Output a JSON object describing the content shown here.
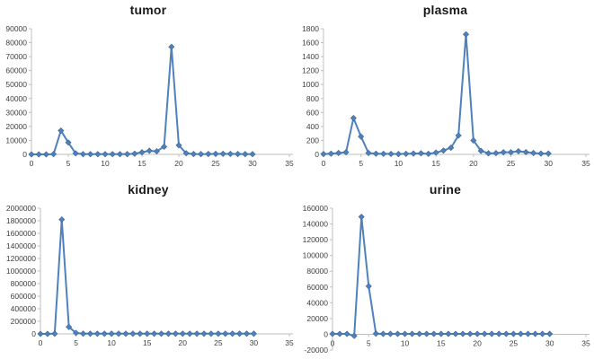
{
  "page": {
    "background": "#ffffff"
  },
  "colors": {
    "series_line": "#4F81BD",
    "marker_fill": "#4F81BD",
    "marker_border": "#3A6494",
    "axis_line": "#BFBFBF",
    "tick_label": "#404040",
    "title": "#1a1a1a"
  },
  "chart_data": [
    {
      "id": "tumor",
      "type": "line",
      "title": "tumor",
      "marker": "diamond",
      "grid": false,
      "legend": "none",
      "xlim": [
        0,
        35
      ],
      "x_tick_step": 5,
      "ylim": [
        0,
        90000
      ],
      "y_tick_step": 10000,
      "x": [
        0,
        1,
        2,
        3,
        4,
        5,
        6,
        7,
        8,
        9,
        10,
        11,
        12,
        13,
        14,
        15,
        16,
        17,
        18,
        19,
        20,
        21,
        22,
        23,
        24,
        25,
        26,
        27,
        28,
        29,
        30
      ],
      "values": [
        0,
        0,
        0,
        200,
        17000,
        8500,
        700,
        150,
        150,
        150,
        150,
        150,
        150,
        200,
        500,
        1500,
        2600,
        2200,
        5500,
        77000,
        6500,
        800,
        250,
        200,
        250,
        350,
        400,
        300,
        250,
        200,
        200
      ]
    },
    {
      "id": "plasma",
      "type": "line",
      "title": "plasma",
      "marker": "diamond",
      "grid": false,
      "legend": "none",
      "xlim": [
        0,
        35
      ],
      "x_tick_step": 5,
      "ylim": [
        0,
        1800
      ],
      "y_tick_step": 200,
      "x": [
        0,
        1,
        2,
        3,
        4,
        5,
        6,
        7,
        8,
        9,
        10,
        11,
        12,
        13,
        14,
        15,
        16,
        17,
        18,
        19,
        20,
        21,
        22,
        23,
        24,
        25,
        26,
        27,
        28,
        29,
        30
      ],
      "values": [
        5,
        10,
        20,
        30,
        520,
        255,
        20,
        10,
        8,
        6,
        5,
        8,
        12,
        15,
        8,
        25,
        55,
        95,
        270,
        1720,
        200,
        50,
        15,
        18,
        30,
        30,
        45,
        32,
        20,
        12,
        12
      ]
    },
    {
      "id": "kidney",
      "type": "line",
      "title": "kidney",
      "marker": "diamond",
      "grid": false,
      "legend": "none",
      "xlim": [
        0,
        35
      ],
      "x_tick_step": 5,
      "ylim": [
        0,
        2000000
      ],
      "y_tick_step": 200000,
      "x": [
        0,
        1,
        2,
        3,
        4,
        5,
        6,
        7,
        8,
        9,
        10,
        11,
        12,
        13,
        14,
        15,
        16,
        17,
        18,
        19,
        20,
        21,
        22,
        23,
        24,
        25,
        26,
        27,
        28,
        29,
        30
      ],
      "values": [
        0,
        0,
        3000,
        1820000,
        110000,
        15000,
        4000,
        3000,
        3000,
        3000,
        3000,
        3000,
        3000,
        3000,
        3000,
        3000,
        3000,
        3000,
        3000,
        3000,
        3000,
        3000,
        3000,
        3000,
        3000,
        3000,
        3000,
        3000,
        3000,
        3000,
        3000
      ]
    },
    {
      "id": "urine",
      "type": "line",
      "title": "urine",
      "marker": "diamond",
      "grid": false,
      "legend": "none",
      "xlim": [
        0,
        35
      ],
      "x_tick_step": 5,
      "ylim": [
        -20000,
        160000
      ],
      "y_tick_step": 20000,
      "x": [
        0,
        1,
        2,
        3,
        4,
        5,
        6,
        7,
        8,
        9,
        10,
        11,
        12,
        13,
        14,
        15,
        16,
        17,
        18,
        19,
        20,
        21,
        22,
        23,
        24,
        25,
        26,
        27,
        28,
        29,
        30
      ],
      "values": [
        500,
        500,
        500,
        -2000,
        149000,
        61000,
        800,
        500,
        500,
        500,
        500,
        500,
        500,
        500,
        500,
        500,
        500,
        500,
        500,
        500,
        500,
        500,
        500,
        500,
        500,
        500,
        500,
        500,
        500,
        500,
        500
      ]
    }
  ]
}
